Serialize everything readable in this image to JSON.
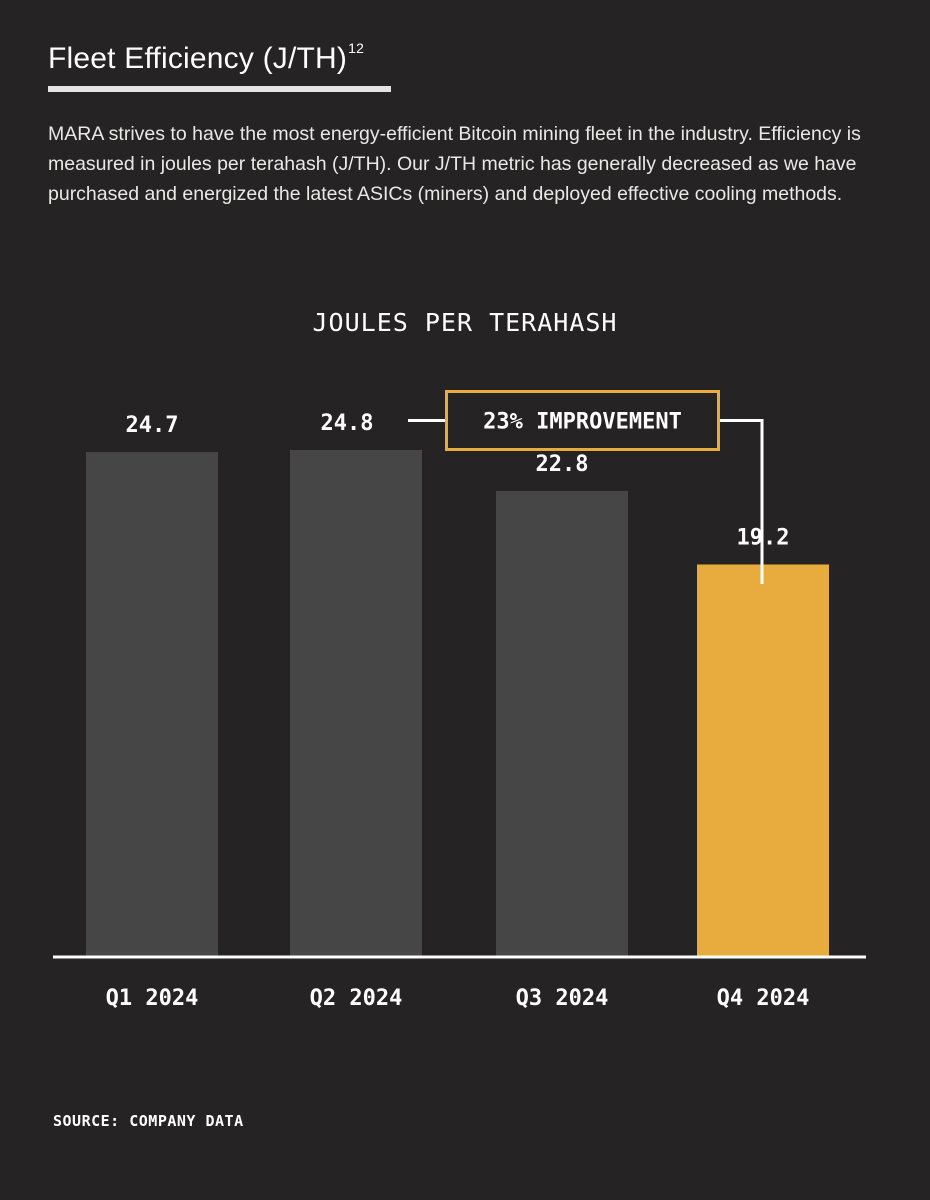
{
  "header": {
    "title": "Fleet Efficiency (J/TH)",
    "title_footnote": "12",
    "description": "MARA strives to have the most energy-efficient Bitcoin mining fleet in the industry. Efficiency is measured in joules per terahash (J/TH). Our J/TH metric has generally decreased as we have purchased and energized the latest ASICs (miners) and deployed effective cooling methods."
  },
  "chart_data": {
    "type": "bar",
    "title": "JOULES PER TERAHASH",
    "categories": [
      "Q1 2024",
      "Q2 2024",
      "Q3 2024",
      "Q4 2024"
    ],
    "values": [
      24.7,
      24.8,
      22.8,
      19.2
    ],
    "value_labels": [
      "24.7",
      "24.8",
      "22.8",
      "19.2"
    ],
    "bar_colors": [
      "#464646",
      "#464646",
      "#464646",
      "#e8ab3e"
    ],
    "ylim": [
      0,
      24.8
    ],
    "xlabel": "",
    "ylabel": "",
    "grid": false,
    "annotation": {
      "text": "23% IMPROVEMENT",
      "from_category": "Q2 2024",
      "to_category": "Q4 2024",
      "color": "#e8ab3e"
    }
  },
  "footer": {
    "source": "SOURCE: COMPANY DATA"
  },
  "colors": {
    "background": "#252324",
    "bar_default": "#464646",
    "accent": "#e8ab3e",
    "axis": "#ffffff"
  }
}
